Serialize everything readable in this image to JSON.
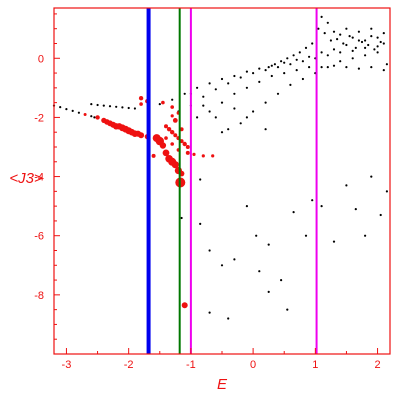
{
  "chart_data": {
    "type": "scatter",
    "xlabel": "E",
    "ylabel": "<J3>",
    "xlim": [
      -3.2,
      2.2
    ],
    "ylim": [
      -10.0,
      1.7
    ],
    "x_ticks": [
      -3,
      -2,
      -1,
      0,
      1,
      2
    ],
    "y_ticks": [
      0,
      -2,
      -4,
      -6,
      -8
    ],
    "grid": false,
    "colors": {
      "axis": "#ee1111",
      "black_points": "#000000",
      "red_points": "#ee1111",
      "blue_line": "#0000ee",
      "green_line": "#007700",
      "magenta_line": "#ee00ee"
    },
    "vertical_lines": [
      {
        "x": -1.68,
        "color": "#0000ee"
      },
      {
        "x": -1.18,
        "color": "#007700"
      },
      {
        "x": -1.0,
        "color": "#ee00ee"
      },
      {
        "x": 1.02,
        "color": "#ee00ee"
      }
    ],
    "black_points": [
      [
        -3.2,
        -1.6
      ],
      [
        -3.1,
        -1.65
      ],
      [
        -3.0,
        -1.72
      ],
      [
        -2.9,
        -1.78
      ],
      [
        -2.8,
        -1.84
      ],
      [
        -2.7,
        -1.9
      ],
      [
        -2.6,
        -1.96
      ],
      [
        -2.55,
        -2.0
      ],
      [
        -2.6,
        -1.55
      ],
      [
        -2.5,
        -1.58
      ],
      [
        -2.4,
        -1.6
      ],
      [
        -2.3,
        -1.62
      ],
      [
        -2.2,
        -1.64
      ],
      [
        -2.1,
        -1.66
      ],
      [
        -2.0,
        -1.68
      ],
      [
        -1.9,
        -1.7
      ],
      [
        -1.5,
        -1.55
      ],
      [
        -1.3,
        -1.4
      ],
      [
        -1.1,
        -1.2
      ],
      [
        -0.9,
        -1.0
      ],
      [
        -0.7,
        -0.85
      ],
      [
        -0.5,
        -0.7
      ],
      [
        -0.3,
        -0.6
      ],
      [
        -0.1,
        -0.45
      ],
      [
        0.1,
        -0.35
      ],
      [
        0.3,
        -0.25
      ],
      [
        0.5,
        -0.15
      ],
      [
        0.7,
        -0.05
      ],
      [
        0.9,
        0.05
      ],
      [
        1.1,
        0.2
      ],
      [
        1.3,
        0.3
      ],
      [
        1.5,
        0.45
      ],
      [
        1.7,
        0.6
      ],
      [
        1.9,
        0.75
      ],
      [
        2.1,
        0.85
      ],
      [
        -1.0,
        -1.6
      ],
      [
        -0.8,
        -1.3
      ],
      [
        -0.6,
        -1.05
      ],
      [
        -0.4,
        -0.85
      ],
      [
        -0.2,
        -0.65
      ],
      [
        0.0,
        -0.5
      ],
      [
        0.2,
        -0.4
      ],
      [
        0.4,
        -0.3
      ],
      [
        0.6,
        -0.2
      ],
      [
        0.8,
        -0.1
      ],
      [
        1.0,
        0.0
      ],
      [
        1.2,
        0.1
      ],
      [
        1.4,
        0.2
      ],
      [
        1.6,
        0.25
      ],
      [
        1.8,
        0.35
      ],
      [
        2.0,
        0.4
      ],
      [
        -0.9,
        -2.0
      ],
      [
        -0.7,
        -1.8
      ],
      [
        -0.5,
        -1.5
      ],
      [
        -0.3,
        -1.2
      ],
      [
        -0.1,
        -1.0
      ],
      [
        0.1,
        -0.8
      ],
      [
        0.3,
        -0.6
      ],
      [
        0.5,
        -0.5
      ],
      [
        0.7,
        -0.4
      ],
      [
        0.9,
        -0.3
      ],
      [
        1.1,
        -0.3
      ],
      [
        1.3,
        -0.25
      ],
      [
        1.5,
        -0.3
      ],
      [
        1.7,
        -0.35
      ],
      [
        1.9,
        -0.3
      ],
      [
        2.1,
        -0.4
      ],
      [
        -0.4,
        -2.4
      ],
      [
        -0.2,
        -2.2
      ],
      [
        0.0,
        -1.8
      ],
      [
        0.2,
        -1.5
      ],
      [
        0.4,
        -1.2
      ],
      [
        0.6,
        -0.9
      ],
      [
        0.8,
        -0.7
      ],
      [
        1.0,
        -0.5
      ],
      [
        1.2,
        -0.3
      ],
      [
        1.4,
        -0.1
      ],
      [
        1.6,
        0.0
      ],
      [
        1.8,
        0.1
      ],
      [
        2.0,
        0.2
      ],
      [
        1.1,
        1.4
      ],
      [
        1.2,
        1.2
      ],
      [
        1.3,
        0.9
      ],
      [
        1.4,
        0.8
      ],
      [
        1.5,
        1.0
      ],
      [
        1.6,
        0.7
      ],
      [
        1.7,
        0.9
      ],
      [
        1.8,
        0.6
      ],
      [
        1.9,
        1.0
      ],
      [
        2.0,
        0.7
      ],
      [
        2.1,
        0.5
      ],
      [
        1.25,
        0.6
      ],
      [
        1.45,
        0.5
      ],
      [
        1.65,
        0.35
      ],
      [
        1.85,
        0.45
      ],
      [
        2.05,
        0.55
      ],
      [
        1.15,
        0.85
      ],
      [
        1.35,
        0.65
      ],
      [
        1.55,
        0.75
      ],
      [
        1.75,
        0.55
      ],
      [
        1.95,
        0.3
      ],
      [
        2.15,
        -0.2
      ],
      [
        1.05,
        1.0
      ],
      [
        0.95,
        0.5
      ],
      [
        0.85,
        0.35
      ],
      [
        0.75,
        0.2
      ],
      [
        0.65,
        0.1
      ],
      [
        0.55,
        0.0
      ],
      [
        0.45,
        -0.1
      ],
      [
        0.35,
        -0.2
      ],
      [
        0.25,
        -0.3
      ],
      [
        -1.2,
        -1.8
      ],
      [
        -1.0,
        -1.2
      ],
      [
        -0.8,
        -1.6
      ],
      [
        -0.6,
        -2.0
      ],
      [
        -0.5,
        -2.5
      ],
      [
        -0.3,
        -1.7
      ],
      [
        -0.1,
        -2.0
      ],
      [
        0.2,
        -2.4
      ],
      [
        -1.15,
        -5.4
      ],
      [
        -0.85,
        -5.6
      ],
      [
        -0.7,
        -6.5
      ],
      [
        -0.5,
        -7.0
      ],
      [
        -0.4,
        -8.8
      ],
      [
        -0.3,
        -6.8
      ],
      [
        -0.1,
        -5.0
      ],
      [
        0.05,
        -6.0
      ],
      [
        0.1,
        -7.2
      ],
      [
        0.25,
        -6.3
      ],
      [
        0.45,
        -7.5
      ],
      [
        0.65,
        -5.2
      ],
      [
        0.85,
        -6.0
      ],
      [
        0.95,
        -4.8
      ],
      [
        1.1,
        -5.0
      ],
      [
        1.3,
        -6.2
      ],
      [
        1.5,
        -4.3
      ],
      [
        1.65,
        -5.1
      ],
      [
        1.8,
        -6.0
      ],
      [
        1.9,
        -4.0
      ],
      [
        2.05,
        -5.3
      ],
      [
        2.15,
        -4.5
      ],
      [
        0.25,
        -7.9
      ],
      [
        0.55,
        -8.5
      ],
      [
        -0.7,
        -8.6
      ],
      [
        -0.85,
        -4.1
      ]
    ],
    "red_points": [
      [
        -2.7,
        -1.9,
        1.5
      ],
      [
        -2.5,
        -2.0,
        2.2
      ],
      [
        -2.4,
        -2.1,
        2.6
      ],
      [
        -2.3,
        -2.2,
        2.9
      ],
      [
        -2.2,
        -2.3,
        3.2
      ],
      [
        -2.1,
        -2.35,
        3.4
      ],
      [
        -2.0,
        -2.45,
        3.5
      ],
      [
        -1.9,
        -2.55,
        3.3
      ],
      [
        -1.8,
        -2.6,
        3.0
      ],
      [
        -1.7,
        -2.65,
        2.6
      ],
      [
        -2.25,
        -2.25,
        3.0
      ],
      [
        -2.15,
        -2.3,
        3.2
      ],
      [
        -2.05,
        -2.4,
        3.4
      ],
      [
        -1.95,
        -2.5,
        3.3
      ],
      [
        -1.85,
        -2.55,
        3.1
      ],
      [
        -2.35,
        -2.15,
        2.8
      ],
      [
        -1.55,
        -2.7,
        4.0
      ],
      [
        -1.5,
        -2.8,
        4.2
      ],
      [
        -1.45,
        -2.95,
        3.2
      ],
      [
        -1.4,
        -3.2,
        3.4
      ],
      [
        -1.35,
        -3.4,
        3.8
      ],
      [
        -1.3,
        -3.5,
        4.0
      ],
      [
        -1.25,
        -3.6,
        3.6
      ],
      [
        -1.2,
        -3.8,
        3.6
      ],
      [
        -1.17,
        -4.2,
        5.0
      ],
      [
        -1.4,
        -2.3,
        2.0
      ],
      [
        -1.35,
        -2.4,
        2.2
      ],
      [
        -1.3,
        -2.5,
        2.2
      ],
      [
        -1.25,
        -2.6,
        2.0
      ],
      [
        -1.2,
        -2.7,
        2.0
      ],
      [
        -1.15,
        -2.8,
        2.0
      ],
      [
        -1.1,
        -2.9,
        2.2
      ],
      [
        -1.05,
        -3.0,
        2.0
      ],
      [
        -1.4,
        -2.7,
        1.8
      ],
      [
        -1.3,
        -2.9,
        1.8
      ],
      [
        -1.2,
        -3.1,
        1.8
      ],
      [
        -1.6,
        -3.3,
        2.0
      ],
      [
        -1.15,
        -3.9,
        2.8
      ],
      [
        -1.05,
        -3.2,
        2.0
      ],
      [
        -0.95,
        -3.25,
        1.6
      ],
      [
        -0.8,
        -3.3,
        1.6
      ],
      [
        -0.65,
        -3.3,
        1.6
      ],
      [
        -1.8,
        -1.35,
        2.2
      ],
      [
        -1.7,
        -1.45,
        2.2
      ],
      [
        -1.45,
        -1.5,
        1.8
      ],
      [
        -1.3,
        -1.65,
        1.8
      ],
      [
        -1.2,
        -1.85,
        1.8
      ],
      [
        -1.3,
        -1.95,
        1.6
      ],
      [
        -1.25,
        -2.1,
        2.4
      ],
      [
        -1.15,
        -2.4,
        2.0
      ],
      [
        -1.8,
        -1.55,
        1.8
      ],
      [
        -1.1,
        -8.35,
        3.0
      ]
    ]
  }
}
